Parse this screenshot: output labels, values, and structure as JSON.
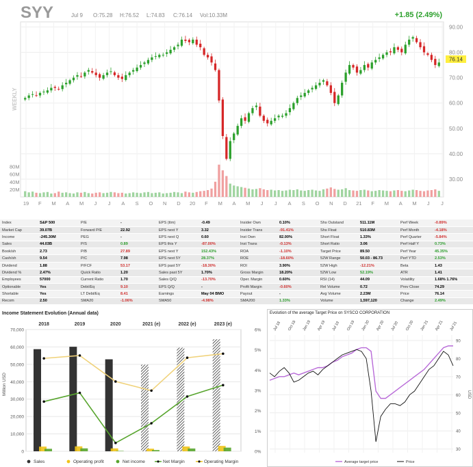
{
  "header": {
    "ticker": "SYY",
    "date": "Jul 9",
    "open": "O:75.28",
    "high": "H:76.52",
    "low": "L:74.83",
    "close": "C:76.14",
    "volume": "Vol:10.33M",
    "change": "+1.85 (2.49%)",
    "price_tag": "76.14",
    "timeframe_label": "WEEKLY"
  },
  "colors": {
    "up": "#2ca02c",
    "down": "#d62728",
    "vol_up": "#9fd49f",
    "vol_down": "#f0a0a0",
    "price_tag": "#ffef3f",
    "income_sales": "#333333",
    "operating_profit": "#f0c419",
    "net_income": "#58a52e",
    "avg_target_line": "#b86ad8",
    "price_line": "#111111"
  },
  "chart_data": [
    {
      "type": "candlestick",
      "title": "SYY",
      "y_axis_ticks": [
        "90.00",
        "80.00",
        "70.00",
        "60.00",
        "50.00",
        "40.00",
        "30.00"
      ],
      "ylim": [
        23,
        92
      ],
      "volume_ticks": [
        "80M",
        "60M",
        "40M",
        "20M"
      ],
      "x_tick_labels": [
        "19",
        "F",
        "M",
        "A",
        "M",
        "J",
        "J",
        "A",
        "S",
        "O",
        "N",
        "D",
        "20",
        "F",
        "M",
        "A",
        "M",
        "J",
        "J",
        "A",
        "S",
        "O",
        "N",
        "D",
        "21",
        "F",
        "M",
        "A",
        "M",
        "J",
        "J"
      ],
      "closes": [
        62,
        63,
        63.5,
        63,
        64,
        64.5,
        65,
        66,
        66,
        65.5,
        67,
        68,
        69,
        70,
        71,
        70.5,
        72,
        73,
        72,
        71,
        70,
        71,
        72,
        72.5,
        71,
        70,
        69.5,
        71,
        72,
        73,
        74,
        75,
        76,
        77,
        78,
        78.5,
        79,
        79,
        80,
        81,
        82,
        83,
        85,
        84.5,
        84,
        85,
        83,
        82,
        79,
        78,
        76,
        73,
        61,
        47,
        38,
        45,
        48,
        51,
        54,
        53,
        56,
        58,
        59,
        55,
        53,
        52,
        53,
        54,
        55,
        55,
        56,
        58,
        60,
        62,
        63,
        64,
        65,
        66,
        67,
        68,
        69,
        67,
        64,
        60,
        63,
        68,
        72,
        75,
        74,
        72,
        73,
        75,
        74,
        76,
        77,
        78,
        79,
        80,
        80,
        82,
        81,
        80,
        83,
        85,
        86,
        84,
        82,
        80,
        79,
        77,
        75,
        76
      ],
      "volumes": [
        15,
        12,
        14,
        11,
        10,
        12,
        13,
        9,
        10,
        14,
        11,
        12,
        10,
        9,
        12,
        11,
        13,
        10,
        9,
        11,
        12,
        10,
        11,
        13,
        12,
        10,
        11,
        9,
        10,
        12,
        11,
        10,
        12,
        13,
        10,
        11,
        12,
        9,
        10,
        11,
        13,
        12,
        10,
        14,
        12,
        11,
        13,
        15,
        16,
        18,
        22,
        40,
        85,
        70,
        55,
        35,
        30,
        28,
        26,
        24,
        22,
        20,
        21,
        23,
        20,
        18,
        19,
        17,
        18,
        16,
        17,
        19,
        18,
        20,
        17,
        16,
        18,
        19,
        17,
        16,
        20,
        22,
        25,
        21,
        19,
        20,
        23,
        18,
        17,
        16,
        18,
        19,
        17,
        15,
        16,
        18,
        17,
        16,
        15,
        17,
        18,
        16,
        15,
        17,
        19,
        18,
        16,
        15,
        17,
        18,
        20,
        16
      ]
    },
    {
      "type": "bar",
      "title": "Income Statement Evolution (Annual data)",
      "categories": [
        "2018",
        "2019",
        "2020",
        "2021 (e)",
        "2022 (e)",
        "2023 (e)"
      ],
      "ylabel": "Million USD",
      "y_ticks": [
        "70,000",
        "60,000",
        "50,000",
        "40,000",
        "30,000",
        "20,000",
        "10,000",
        "0"
      ],
      "ylim": [
        0,
        70000
      ],
      "y2_ticks": [
        "6%",
        "5%",
        "4%",
        "3%",
        "2%",
        "1%",
        "0%"
      ],
      "y2lim": [
        0,
        6
      ],
      "series": [
        {
          "name": "Sales",
          "kind": "bar",
          "values": [
            58727,
            60114,
            52893,
            49800,
            59600,
            64400
          ]
        },
        {
          "name": "Operating profit",
          "kind": "bar",
          "values": [
            2693,
            2837,
            1658,
            1490,
            2750,
            3100
          ]
        },
        {
          "name": "Net income",
          "kind": "bar",
          "values": [
            1431,
            1674,
            215,
            690,
            1600,
            2100
          ]
        },
        {
          "name": "Net Margin",
          "kind": "line",
          "values": [
            2.45,
            2.88,
            0.41,
            1.38,
            2.7,
            3.26
          ]
        },
        {
          "name": "Operating Margin",
          "kind": "line",
          "values": [
            4.58,
            4.72,
            3.44,
            2.99,
            4.61,
            4.81
          ]
        }
      ]
    },
    {
      "type": "line",
      "title": "Evolution of the average Target Price on SYSCO CORPORATION",
      "x_tick_labels": [
        "Jul 18",
        "Oct 18",
        "Jan 19",
        "Apr 19",
        "Jul 19",
        "Oct 19",
        "Jan 20",
        "Apr 20",
        "Jul 20",
        "Oct 20",
        "Jan 21",
        "Apr 21",
        "Jul 21"
      ],
      "y_ticks": [
        "90",
        "80",
        "70",
        "60",
        "50",
        "40",
        "30"
      ],
      "ylabel": "USD",
      "ylim": [
        28,
        93
      ],
      "series": [
        {
          "name": "Average target price",
          "values": [
            68,
            69,
            70,
            70,
            71,
            72,
            71,
            72,
            73,
            74,
            75,
            75,
            76,
            78,
            79,
            81,
            82,
            83,
            85,
            86,
            86,
            84,
            62,
            58,
            58,
            60,
            62,
            64,
            66,
            68,
            70,
            72,
            74,
            77,
            80,
            83,
            86,
            87,
            87
          ]
        },
        {
          "name": "Price",
          "values": [
            72,
            70,
            73,
            75,
            72,
            67,
            68,
            70,
            72,
            73,
            71,
            74,
            76,
            78,
            80,
            82,
            83,
            84,
            85,
            84,
            80,
            62,
            34,
            48,
            52,
            55,
            55,
            54,
            56,
            60,
            62,
            66,
            70,
            74,
            76,
            80,
            84,
            82,
            76
          ]
        }
      ]
    }
  ],
  "stats": [
    [
      {
        "l": "Index"
      },
      {
        "v": "S&P 500"
      },
      {
        "l": "P/E"
      },
      {
        "v": "-"
      },
      {
        "l": "EPS (ttm)"
      },
      {
        "v": "-0.49"
      },
      {
        "l": "Insider Own"
      },
      {
        "v": "0.10%"
      },
      {
        "l": "Shs Outstand"
      },
      {
        "v": "511.11M"
      },
      {
        "l": "Perf Week"
      },
      {
        "v": "-0.89%",
        "c": "neg"
      }
    ],
    [
      {
        "l": "Market Cap"
      },
      {
        "v": "39.07B"
      },
      {
        "l": "Forward P/E"
      },
      {
        "v": "22.92"
      },
      {
        "l": "EPS next Y"
      },
      {
        "v": "3.32"
      },
      {
        "l": "Insider Trans"
      },
      {
        "v": "-91.41%",
        "c": "neg"
      },
      {
        "l": "Shs Float"
      },
      {
        "v": "510.83M"
      },
      {
        "l": "Perf Month"
      },
      {
        "v": "-4.18%",
        "c": "neg"
      }
    ],
    [
      {
        "l": "Income"
      },
      {
        "v": "-245.30M"
      },
      {
        "l": "PEG"
      },
      {
        "v": "-"
      },
      {
        "l": "EPS next Q"
      },
      {
        "v": "0.60"
      },
      {
        "l": "Inst Own"
      },
      {
        "v": "82.00%"
      },
      {
        "l": "Short Float"
      },
      {
        "v": "1.33%"
      },
      {
        "l": "Perf Quarter"
      },
      {
        "v": "-5.84%",
        "c": "neg"
      }
    ],
    [
      {
        "l": "Sales"
      },
      {
        "v": "44.03B"
      },
      {
        "l": "P/S"
      },
      {
        "v": "0.89",
        "c": "pos"
      },
      {
        "l": "EPS this Y"
      },
      {
        "v": "-87.00%",
        "c": "neg"
      },
      {
        "l": "Inst Trans"
      },
      {
        "v": "-0.13%",
        "c": "neg"
      },
      {
        "l": "Short Ratio"
      },
      {
        "v": "3.06"
      },
      {
        "l": "Perf Half Y"
      },
      {
        "v": "0.73%",
        "c": "pos"
      }
    ],
    [
      {
        "l": "Book/sh"
      },
      {
        "v": "2.73"
      },
      {
        "l": "P/B"
      },
      {
        "v": "27.89",
        "c": "neg"
      },
      {
        "l": "EPS next Y"
      },
      {
        "v": "152.43%",
        "c": "pos"
      },
      {
        "l": "ROA"
      },
      {
        "v": "-1.10%",
        "c": "neg"
      },
      {
        "l": "Target Price"
      },
      {
        "v": "89.50"
      },
      {
        "l": "Perf Year"
      },
      {
        "v": "45.35%",
        "c": "pos"
      }
    ],
    [
      {
        "l": "Cash/sh"
      },
      {
        "v": "9.54"
      },
      {
        "l": "P/C"
      },
      {
        "v": "7.98"
      },
      {
        "l": "EPS next 5Y"
      },
      {
        "v": "28.37%",
        "c": "pos"
      },
      {
        "l": "ROE"
      },
      {
        "v": "-18.60%",
        "c": "neg"
      },
      {
        "l": "52W Range"
      },
      {
        "v": "50.03 - 86.73"
      },
      {
        "l": "Perf YTD"
      },
      {
        "v": "2.53%",
        "c": "pos"
      }
    ],
    [
      {
        "l": "Dividend"
      },
      {
        "v": "1.88"
      },
      {
        "l": "P/FCF"
      },
      {
        "v": "53.17",
        "c": "neg"
      },
      {
        "l": "EPS past 5Y"
      },
      {
        "v": "-18.30%",
        "c": "neg"
      },
      {
        "l": "ROI"
      },
      {
        "v": "3.90%"
      },
      {
        "l": "52W High"
      },
      {
        "v": "-12.21%",
        "c": "neg"
      },
      {
        "l": "Beta"
      },
      {
        "v": "1.43"
      }
    ],
    [
      {
        "l": "Dividend %"
      },
      {
        "v": "2.47%"
      },
      {
        "l": "Quick Ratio"
      },
      {
        "v": "1.20"
      },
      {
        "l": "Sales past 5Y"
      },
      {
        "v": "1.70%"
      },
      {
        "l": "Gross Margin"
      },
      {
        "v": "18.20%"
      },
      {
        "l": "52W Low"
      },
      {
        "v": "52.19%",
        "c": "pos"
      },
      {
        "l": "ATR"
      },
      {
        "v": "1.41"
      }
    ],
    [
      {
        "l": "Employees"
      },
      {
        "v": "57000"
      },
      {
        "l": "Current Ratio"
      },
      {
        "v": "1.70"
      },
      {
        "l": "Sales Q/Q"
      },
      {
        "v": "-13.70%",
        "c": "neg"
      },
      {
        "l": "Oper. Margin"
      },
      {
        "v": "0.60%"
      },
      {
        "l": "RSI (14)"
      },
      {
        "v": "44.09"
      },
      {
        "l": "Volatility"
      },
      {
        "v": "1.68% 1.76%"
      }
    ],
    [
      {
        "l": "Optionable"
      },
      {
        "v": "Yes"
      },
      {
        "l": "Debt/Eq"
      },
      {
        "v": "9.10",
        "c": "neg"
      },
      {
        "l": "EPS Q/Q"
      },
      {
        "v": "-"
      },
      {
        "l": "Profit Margin"
      },
      {
        "v": "-0.60%",
        "c": "neg"
      },
      {
        "l": "Rel Volume"
      },
      {
        "v": "0.72"
      },
      {
        "l": "Prev Close"
      },
      {
        "v": "74.29"
      }
    ],
    [
      {
        "l": "Shortable"
      },
      {
        "v": "Yes"
      },
      {
        "l": "LT Debt/Eq"
      },
      {
        "v": "8.41",
        "c": "neg"
      },
      {
        "l": "Earnings"
      },
      {
        "v": "May 04 BMO"
      },
      {
        "l": "Payout"
      },
      {
        "v": "-"
      },
      {
        "l": "Avg Volume"
      },
      {
        "v": "2.23M"
      },
      {
        "l": "Price"
      },
      {
        "v": "76.14"
      }
    ],
    [
      {
        "l": "Recom"
      },
      {
        "v": "2.50"
      },
      {
        "l": "SMA20"
      },
      {
        "v": "-1.06%",
        "c": "neg"
      },
      {
        "l": "SMA50"
      },
      {
        "v": "-4.98%",
        "c": "neg"
      },
      {
        "l": "SMA200"
      },
      {
        "v": "1.33%",
        "c": "pos"
      },
      {
        "l": "Volume"
      },
      {
        "v": "1,597,120"
      },
      {
        "l": "Change"
      },
      {
        "v": "2.49%",
        "c": "pos"
      }
    ]
  ]
}
